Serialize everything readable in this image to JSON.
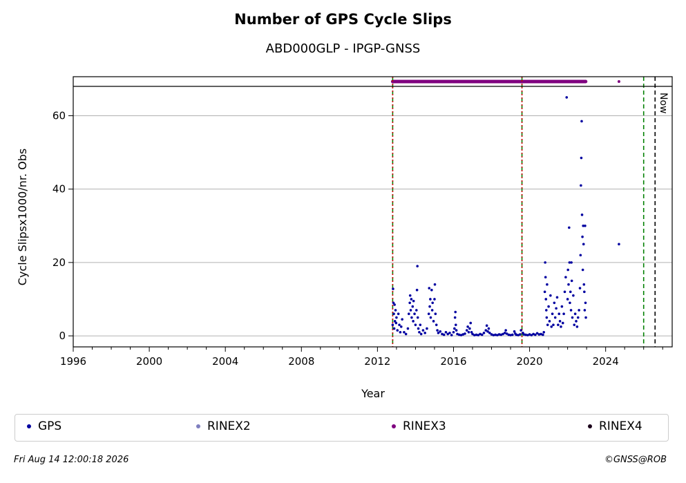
{
  "chart_data": {
    "type": "scatter",
    "title": "Number of GPS Cycle Slips",
    "subtitle": "ABD000GLP - IPGP-GNSS",
    "xlabel": "Year",
    "ylabel": "Cycle Slipsx1000/nr. Obs",
    "xlim": [
      1996,
      2027.5
    ],
    "ylim": [
      -3,
      68
    ],
    "xticks": [
      1996,
      2000,
      2004,
      2008,
      2012,
      2016,
      2020,
      2024
    ],
    "yticks": [
      0,
      20,
      40,
      60
    ],
    "grid": "horizontal",
    "legend_position": "bottom",
    "now_label": "Now",
    "vertical_markers": [
      {
        "x": 2012.8,
        "color": "#008000",
        "style": "dashed"
      },
      {
        "x": 2012.8,
        "color": "#cc0000",
        "style": "dotted"
      },
      {
        "x": 2019.6,
        "color": "#008000",
        "style": "dashed"
      },
      {
        "x": 2019.6,
        "color": "#cc0000",
        "style": "dotted"
      },
      {
        "x": 2026.0,
        "color": "#008000",
        "style": "dashed"
      },
      {
        "x": 2026.6,
        "color": "#000000",
        "style": "dashed"
      }
    ],
    "rinex3_coverage": [
      [
        2012.8,
        2015.9
      ],
      [
        2015.95,
        2019.55
      ],
      [
        2019.6,
        2022.95
      ]
    ],
    "rinex3_isolated": [
      2024.7
    ],
    "series": [
      {
        "name": "GPS",
        "color": "#0000a0",
        "points": [
          [
            2012.8,
            3
          ],
          [
            2012.82,
            12.8
          ],
          [
            2012.84,
            9
          ],
          [
            2012.86,
            6
          ],
          [
            2012.88,
            2
          ],
          [
            2012.9,
            8.5
          ],
          [
            2012.92,
            4
          ],
          [
            2012.95,
            7
          ],
          [
            2012.98,
            3.5
          ],
          [
            2013.0,
            5
          ],
          [
            2013.05,
            1.5
          ],
          [
            2013.1,
            6
          ],
          [
            2013.15,
            3
          ],
          [
            2013.2,
            1
          ],
          [
            2013.25,
            2.5
          ],
          [
            2013.3,
            4.5
          ],
          [
            2013.4,
            1
          ],
          [
            2013.5,
            0.5
          ],
          [
            2013.6,
            2
          ],
          [
            2013.65,
            6
          ],
          [
            2013.7,
            9
          ],
          [
            2013.72,
            11
          ],
          [
            2013.75,
            7
          ],
          [
            2013.78,
            10
          ],
          [
            2013.8,
            5
          ],
          [
            2013.85,
            8
          ],
          [
            2013.88,
            4
          ],
          [
            2013.9,
            9.5
          ],
          [
            2013.95,
            6
          ],
          [
            2014.0,
            3
          ],
          [
            2014.05,
            7
          ],
          [
            2014.08,
            12.5
          ],
          [
            2014.1,
            19
          ],
          [
            2014.12,
            5
          ],
          [
            2014.15,
            2
          ],
          [
            2014.2,
            1
          ],
          [
            2014.25,
            3
          ],
          [
            2014.3,
            0.5
          ],
          [
            2014.4,
            1.5
          ],
          [
            2014.5,
            0.8
          ],
          [
            2014.6,
            2
          ],
          [
            2014.7,
            6
          ],
          [
            2014.72,
            13
          ],
          [
            2014.75,
            8
          ],
          [
            2014.78,
            10
          ],
          [
            2014.8,
            5
          ],
          [
            2014.85,
            12.5
          ],
          [
            2014.88,
            7
          ],
          [
            2014.9,
            9
          ],
          [
            2014.95,
            4
          ],
          [
            2015.0,
            10
          ],
          [
            2015.02,
            14
          ],
          [
            2015.05,
            6
          ],
          [
            2015.1,
            3
          ],
          [
            2015.15,
            1.5
          ],
          [
            2015.2,
            0.8
          ],
          [
            2015.3,
            1.2
          ],
          [
            2015.4,
            0.5
          ],
          [
            2015.5,
            0.3
          ],
          [
            2015.6,
            1
          ],
          [
            2015.7,
            0.5
          ],
          [
            2015.8,
            0.8
          ],
          [
            2015.9,
            0.2
          ],
          [
            2016.0,
            1
          ],
          [
            2016.05,
            2
          ],
          [
            2016.08,
            5
          ],
          [
            2016.1,
            6.5
          ],
          [
            2016.12,
            3
          ],
          [
            2016.15,
            1.5
          ],
          [
            2016.2,
            0.5
          ],
          [
            2016.3,
            0.3
          ],
          [
            2016.4,
            0.2
          ],
          [
            2016.5,
            0.4
          ],
          [
            2016.6,
            0.6
          ],
          [
            2016.7,
            1.5
          ],
          [
            2016.75,
            2.5
          ],
          [
            2016.8,
            1
          ],
          [
            2016.85,
            2
          ],
          [
            2016.9,
            3.5
          ],
          [
            2016.95,
            1
          ],
          [
            2017.0,
            0.5
          ],
          [
            2017.1,
            0.2
          ],
          [
            2017.2,
            0.3
          ],
          [
            2017.3,
            0.2
          ],
          [
            2017.4,
            0.5
          ],
          [
            2017.5,
            0.3
          ],
          [
            2017.6,
            0.8
          ],
          [
            2017.7,
            1.5
          ],
          [
            2017.75,
            2.8
          ],
          [
            2017.8,
            1.2
          ],
          [
            2017.85,
            2
          ],
          [
            2017.9,
            0.8
          ],
          [
            2018.0,
            0.4
          ],
          [
            2018.1,
            0.2
          ],
          [
            2018.2,
            0.3
          ],
          [
            2018.3,
            0.2
          ],
          [
            2018.4,
            0.4
          ],
          [
            2018.5,
            0.3
          ],
          [
            2018.6,
            0.5
          ],
          [
            2018.7,
            0.8
          ],
          [
            2018.75,
            1.5
          ],
          [
            2018.8,
            0.6
          ],
          [
            2018.9,
            0.3
          ],
          [
            2019.0,
            0.2
          ],
          [
            2019.1,
            0.3
          ],
          [
            2019.2,
            1.2
          ],
          [
            2019.25,
            0.6
          ],
          [
            2019.3,
            0.3
          ],
          [
            2019.4,
            0.2
          ],
          [
            2019.5,
            0.4
          ],
          [
            2019.55,
            1.5
          ],
          [
            2019.65,
            0.8
          ],
          [
            2019.7,
            0.4
          ],
          [
            2019.8,
            0.3
          ],
          [
            2019.9,
            0.2
          ],
          [
            2020.0,
            0.4
          ],
          [
            2020.1,
            0.2
          ],
          [
            2020.2,
            0.5
          ],
          [
            2020.3,
            0.3
          ],
          [
            2020.4,
            0.7
          ],
          [
            2020.5,
            0.4
          ],
          [
            2020.6,
            0.5
          ],
          [
            2020.7,
            0.3
          ],
          [
            2020.75,
            1
          ],
          [
            2020.8,
            12
          ],
          [
            2020.82,
            20
          ],
          [
            2020.84,
            16
          ],
          [
            2020.86,
            10
          ],
          [
            2020.88,
            7
          ],
          [
            2020.9,
            5
          ],
          [
            2020.92,
            14
          ],
          [
            2020.95,
            3
          ],
          [
            2021.0,
            8
          ],
          [
            2021.05,
            4
          ],
          [
            2021.1,
            11
          ],
          [
            2021.15,
            2.5
          ],
          [
            2021.2,
            6
          ],
          [
            2021.25,
            3
          ],
          [
            2021.3,
            9
          ],
          [
            2021.35,
            5
          ],
          [
            2021.4,
            7.5
          ],
          [
            2021.45,
            10.5
          ],
          [
            2021.5,
            3
          ],
          [
            2021.55,
            6
          ],
          [
            2021.6,
            4
          ],
          [
            2021.65,
            2.5
          ],
          [
            2021.7,
            8
          ],
          [
            2021.75,
            3.5
          ],
          [
            2021.8,
            6
          ],
          [
            2021.85,
            12
          ],
          [
            2021.9,
            16
          ],
          [
            2021.95,
            65
          ],
          [
            2022.0,
            10
          ],
          [
            2022.02,
            18
          ],
          [
            2022.05,
            14
          ],
          [
            2022.08,
            29.5
          ],
          [
            2022.1,
            20
          ],
          [
            2022.12,
            9
          ],
          [
            2022.15,
            12
          ],
          [
            2022.18,
            7
          ],
          [
            2022.2,
            20
          ],
          [
            2022.22,
            15
          ],
          [
            2022.25,
            5
          ],
          [
            2022.3,
            11
          ],
          [
            2022.35,
            3
          ],
          [
            2022.4,
            6
          ],
          [
            2022.45,
            4
          ],
          [
            2022.5,
            2.5
          ],
          [
            2022.55,
            5
          ],
          [
            2022.6,
            7
          ],
          [
            2022.65,
            13
          ],
          [
            2022.68,
            22
          ],
          [
            2022.7,
            41
          ],
          [
            2022.72,
            48.5
          ],
          [
            2022.74,
            58.5
          ],
          [
            2022.76,
            33
          ],
          [
            2022.78,
            27
          ],
          [
            2022.8,
            18
          ],
          [
            2022.82,
            30
          ],
          [
            2022.84,
            25
          ],
          [
            2022.86,
            14
          ],
          [
            2022.88,
            12
          ],
          [
            2022.9,
            7
          ],
          [
            2022.92,
            30
          ],
          [
            2022.94,
            9
          ],
          [
            2022.96,
            5
          ],
          [
            2024.7,
            25
          ]
        ]
      },
      {
        "name": "RINEX2",
        "color": "#7f7fbf",
        "points": []
      },
      {
        "name": "RINEX3",
        "color": "#7f007f",
        "points": []
      },
      {
        "name": "RINEX4",
        "color": "#1a001a",
        "points": []
      }
    ]
  },
  "legend": {
    "items": [
      {
        "label": "GPS",
        "color": "#0000a0"
      },
      {
        "label": "RINEX2",
        "color": "#7f7fbf"
      },
      {
        "label": "RINEX3",
        "color": "#7f007f"
      },
      {
        "label": "RINEX4",
        "color": "#1a001a"
      }
    ]
  },
  "footer": {
    "timestamp": "Fri Aug 14 12:00:18 2026",
    "credit": "©GNSS@ROB"
  }
}
